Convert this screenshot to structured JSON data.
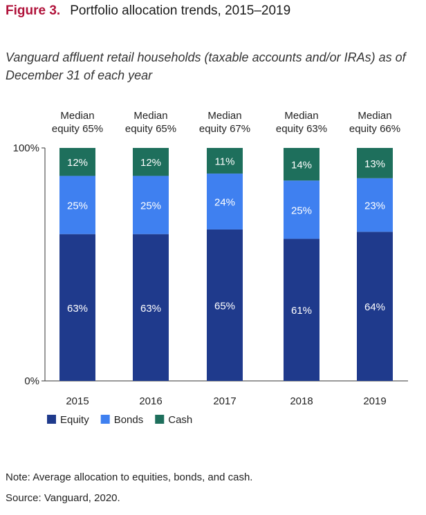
{
  "figure": {
    "number": "Figure 3.",
    "title": "Portfolio allocation trends, 2015–2019",
    "subtitle": "Vanguard affluent retail households (taxable accounts and/or IRAs) as of December 31 of each year"
  },
  "chart_data": {
    "type": "bar",
    "stacked": true,
    "categories": [
      "2015",
      "2016",
      "2017",
      "2018",
      "2019"
    ],
    "series": [
      {
        "name": "Equity",
        "values": [
          63,
          63,
          65,
          61,
          64
        ],
        "color": "#1f3a8c",
        "labels": [
          "63%",
          "63%",
          "65%",
          "61%",
          "64%"
        ]
      },
      {
        "name": "Bonds",
        "values": [
          25,
          25,
          24,
          25,
          23
        ],
        "color": "#3f80f0",
        "labels": [
          "25%",
          "25%",
          "24%",
          "25%",
          "23%"
        ]
      },
      {
        "name": "Cash",
        "values": [
          12,
          12,
          11,
          14,
          13
        ],
        "color": "#1e6f5c",
        "labels": [
          "12%",
          "12%",
          "11%",
          "14%",
          "13%"
        ]
      }
    ],
    "top_annotations": [
      [
        "Median",
        "equity 65%"
      ],
      [
        "Median",
        "equity 65%"
      ],
      [
        "Median",
        "equity 67%"
      ],
      [
        "Median",
        "equity 63%"
      ],
      [
        "Median",
        "equity 66%"
      ]
    ],
    "ylim": [
      0,
      100
    ],
    "yticks": [
      "0%",
      "100%"
    ],
    "xlabel": "",
    "ylabel": "",
    "grid": false,
    "legend_position": "bottom-left"
  },
  "notes": {
    "note": "Note: Average allocation to equities, bonds, and cash.",
    "source": "Source: Vanguard, 2020."
  }
}
